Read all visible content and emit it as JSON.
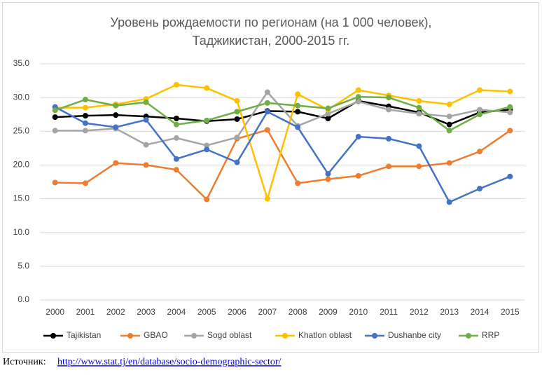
{
  "chart_data": {
    "type": "line",
    "title": [
      "Уровень рождаемости по регионам (на 1 000 человек),",
      "Таджикистан, 2000-2015 гг."
    ],
    "categories": [
      "2000",
      "2001",
      "2002",
      "2003",
      "2004",
      "2005",
      "2006",
      "2007",
      "2008",
      "2009",
      "2010",
      "2011",
      "2012",
      "2013",
      "2014",
      "2015"
    ],
    "series": [
      {
        "name": "Tajikistan",
        "color": "#000000",
        "values": [
          27.1,
          27.3,
          27.4,
          27.2,
          26.9,
          26.5,
          26.8,
          28.0,
          27.9,
          26.9,
          29.5,
          28.7,
          27.8,
          26.0,
          27.8,
          28.2
        ]
      },
      {
        "name": "GBAO",
        "color": "#ed7d31",
        "values": [
          17.4,
          17.3,
          20.3,
          20.0,
          19.3,
          14.9,
          23.9,
          25.2,
          17.3,
          17.9,
          18.4,
          19.8,
          19.8,
          20.3,
          22.0,
          25.1
        ]
      },
      {
        "name": "Sogd oblast",
        "color": "#a5a5a5",
        "values": [
          25.1,
          25.1,
          25.4,
          23.0,
          24.0,
          22.9,
          24.1,
          30.8,
          25.8,
          27.6,
          29.4,
          28.2,
          27.6,
          27.2,
          28.2,
          27.8
        ]
      },
      {
        "name": "Khatlon oblast",
        "color": "#ffc000",
        "values": [
          28.5,
          28.5,
          29.0,
          29.8,
          31.9,
          31.4,
          29.5,
          15.0,
          30.5,
          28.2,
          31.1,
          30.3,
          29.5,
          29.0,
          31.1,
          30.9
        ]
      },
      {
        "name": "Dushanbe city",
        "color": "#4472c4",
        "values": [
          28.6,
          26.2,
          25.6,
          26.7,
          20.9,
          22.3,
          20.4,
          27.9,
          25.6,
          18.7,
          24.2,
          23.9,
          22.8,
          14.5,
          16.5,
          18.3
        ]
      },
      {
        "name": "RRP",
        "color": "#70ad47",
        "values": [
          28.1,
          29.7,
          28.8,
          29.3,
          26.0,
          26.6,
          27.9,
          29.2,
          28.8,
          28.4,
          30.1,
          30.0,
          28.5,
          25.1,
          27.5,
          28.6
        ]
      }
    ],
    "ylim": [
      0,
      35
    ],
    "yticks": [
      {
        "value": 0,
        "label": "0.0"
      },
      {
        "value": 5,
        "label": "5.0"
      },
      {
        "value": 10,
        "label": "10.0"
      },
      {
        "value": 15,
        "label": "15.0"
      },
      {
        "value": 20,
        "label": "20.0"
      },
      {
        "value": 25,
        "label": "25.0"
      },
      {
        "value": 30,
        "label": "30.0"
      },
      {
        "value": 35,
        "label": "35.0"
      }
    ],
    "grid": true,
    "legend": "bottom"
  },
  "source": {
    "label": "Источник:",
    "url": "http://www.stat.tj/en/database/socio-demographic-sector/"
  }
}
